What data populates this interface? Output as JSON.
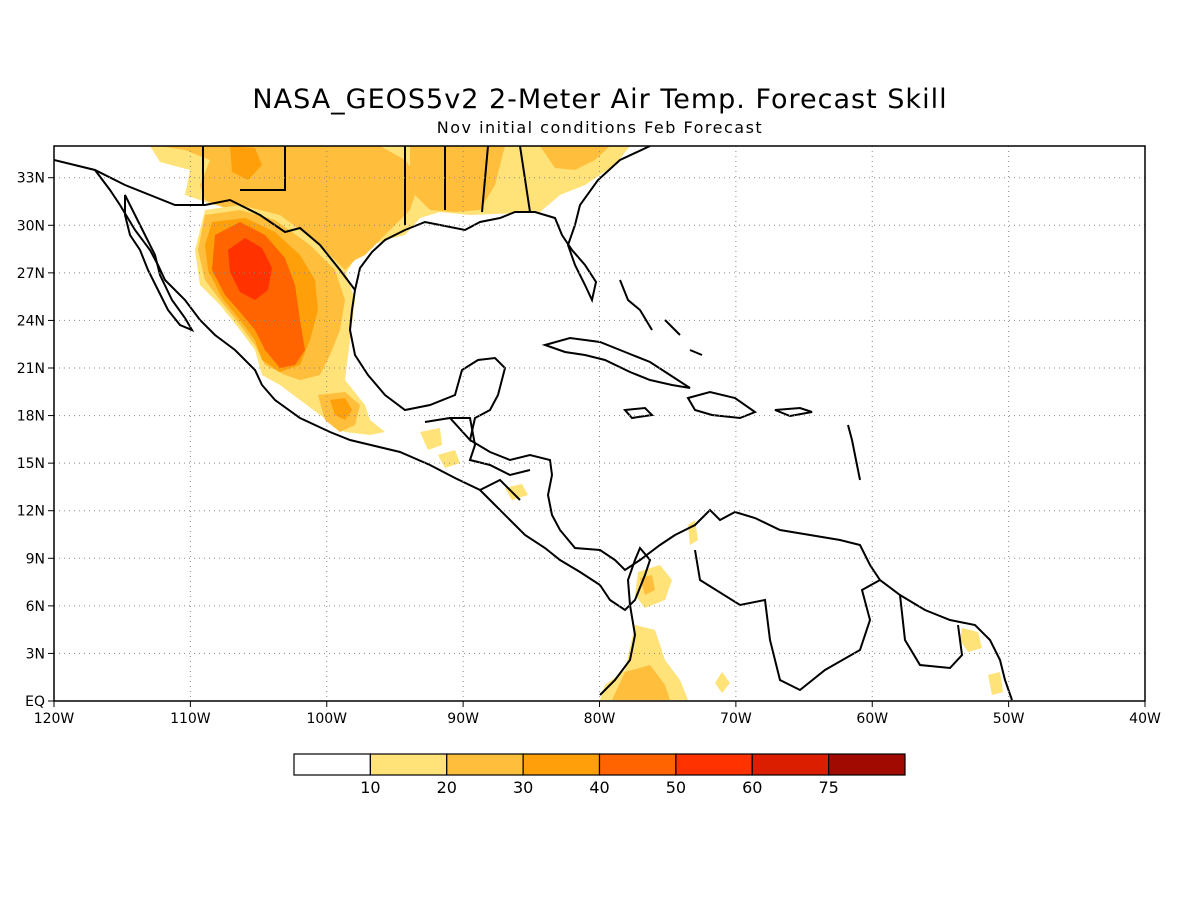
{
  "title": "NASA_GEOS5v2 2-Meter Air Temp. Forecast Skill",
  "subtitle": "Nov initial conditions  Feb Forecast",
  "map": {
    "lon_range": [
      -120,
      -40
    ],
    "lat_range": [
      0,
      35
    ],
    "grid": "dotted",
    "lon_ticks": [
      {
        "lon": -120,
        "label": "120W"
      },
      {
        "lon": -110,
        "label": "110W"
      },
      {
        "lon": -100,
        "label": "100W"
      },
      {
        "lon": -90,
        "label": "90W"
      },
      {
        "lon": -80,
        "label": "80W"
      },
      {
        "lon": -70,
        "label": "70W"
      },
      {
        "lon": -60,
        "label": "60W"
      },
      {
        "lon": -50,
        "label": "50W"
      },
      {
        "lon": -40,
        "label": "40W"
      }
    ],
    "lat_ticks": [
      {
        "lat": 0,
        "label": "EQ"
      },
      {
        "lat": 3,
        "label": "3N"
      },
      {
        "lat": 6,
        "label": "6N"
      },
      {
        "lat": 9,
        "label": "9N"
      },
      {
        "lat": 12,
        "label": "12N"
      },
      {
        "lat": 15,
        "label": "15N"
      },
      {
        "lat": 18,
        "label": "18N"
      },
      {
        "lat": 21,
        "label": "21N"
      },
      {
        "lat": 24,
        "label": "24N"
      },
      {
        "lat": 27,
        "label": "27N"
      },
      {
        "lat": 30,
        "label": "30N"
      },
      {
        "lat": 33,
        "label": "33N"
      }
    ]
  },
  "colorbar": {
    "colors": [
      "#ffffff",
      "#ffe278",
      "#ffbe3c",
      "#ffa00a",
      "#ff6400",
      "#ff3200",
      "#dc1e00",
      "#a00a00"
    ],
    "labels": [
      "10",
      "20",
      "30",
      "40",
      "50",
      "60",
      "75"
    ]
  }
}
